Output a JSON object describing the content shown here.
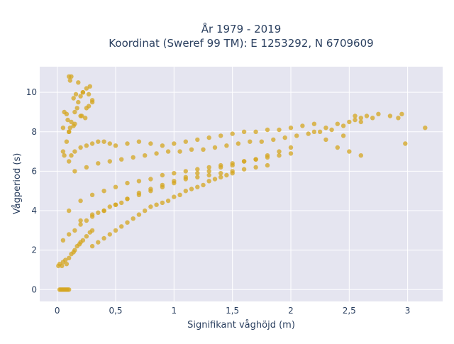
{
  "chart_data": {
    "type": "scatter",
    "title_line1": "År 1979 - 2019",
    "title_line2": "Koordinat (Sweref 99 TM): E 1253292, N 6709609",
    "xlabel": "Signifikant våghöjd (m)",
    "ylabel": "Vågperiod (s)",
    "xlim": [
      -0.15,
      3.3
    ],
    "ylim": [
      -0.6,
      11.3
    ],
    "x_ticks": [
      0,
      0.5,
      1,
      1.5,
      2,
      2.5,
      3
    ],
    "x_tick_labels": [
      "0",
      "0,5",
      "1",
      "1,5",
      "2",
      "2,5",
      "3"
    ],
    "y_ticks": [
      0,
      2,
      4,
      6,
      8,
      10
    ],
    "y_tick_labels": [
      "0",
      "2",
      "4",
      "6",
      "8",
      "10"
    ],
    "grid": true,
    "legend": "none",
    "colors": {
      "marker": "#d4a520",
      "plot_background": "#e5e5f0",
      "grid": "#ffffff",
      "text": "#2a3f5f"
    },
    "series": [
      {
        "x": [
          0.02,
          0.03,
          0.04,
          0.05,
          0.06,
          0.07,
          0.08,
          0.09,
          0.1,
          0.01,
          0.02,
          0.04,
          0.05,
          0.07,
          0.08,
          0.1,
          0.12,
          0.14,
          0.15,
          0.17,
          0.19,
          0.2,
          0.22,
          0.25,
          0.28,
          0.3,
          0.05,
          0.1,
          0.15,
          0.2,
          0.25,
          0.3,
          0.35,
          0.4,
          0.45,
          0.5,
          0.55,
          0.6,
          0.7,
          0.8,
          0.9,
          1.0,
          1.1,
          1.2,
          1.3,
          1.4,
          1.5,
          1.6,
          1.7,
          1.8,
          0.1,
          0.2,
          0.3,
          0.4,
          0.5,
          0.6,
          0.7,
          0.8,
          0.9,
          1.0,
          1.1,
          1.2,
          1.3,
          1.4,
          1.5,
          1.6,
          1.7,
          1.8,
          1.9,
          2.0,
          0.15,
          0.25,
          0.35,
          0.45,
          0.55,
          0.65,
          0.75,
          0.85,
          0.95,
          1.05,
          1.15,
          1.25,
          1.35,
          1.45,
          1.55,
          1.65,
          1.75,
          1.85,
          1.95,
          2.05,
          2.15,
          2.25,
          0.05,
          0.08,
          0.1,
          0.12,
          0.15,
          0.18,
          0.2,
          0.22,
          0.25,
          0.28,
          0.3,
          0.06,
          0.09,
          0.11,
          0.14,
          0.17,
          0.21,
          0.24,
          0.27,
          0.1,
          0.12,
          0.15,
          0.2,
          0.25,
          0.3,
          0.35,
          0.4,
          0.45,
          0.5,
          0.6,
          0.7,
          0.8,
          0.9,
          1.0,
          1.1,
          1.2,
          1.3,
          1.4,
          1.5,
          1.6,
          1.7,
          1.8,
          1.9,
          2.0,
          2.1,
          2.2,
          2.2,
          2.3,
          2.35,
          2.4,
          2.45,
          2.5,
          2.55,
          2.6,
          2.65,
          2.7,
          2.75,
          2.4,
          2.5,
          2.6,
          2.3,
          2.45,
          2.85,
          2.92,
          2.95,
          3.15,
          2.98,
          2.55,
          2.6,
          0.1,
          0.15,
          0.2,
          0.25,
          0.3,
          0.12,
          0.18,
          0.22,
          0.27,
          0.08,
          0.1,
          0.14,
          0.06,
          0.05,
          0.11,
          0.16,
          0.3,
          0.35,
          0.4,
          0.45,
          0.5,
          0.55,
          0.6,
          0.65,
          0.7,
          0.75,
          0.8,
          0.85,
          0.9,
          0.95,
          1.0,
          1.05,
          1.1,
          1.15,
          1.2,
          1.25,
          1.3,
          1.35,
          1.4,
          1.45,
          1.5,
          0.2,
          0.3,
          0.4,
          0.5,
          0.6,
          0.7,
          0.8,
          0.9,
          1.0,
          1.1,
          1.2,
          1.3,
          1.4,
          1.5,
          1.6,
          1.7,
          1.8,
          1.9,
          2.0
        ],
        "y": [
          0,
          0,
          0,
          0,
          0,
          0,
          0,
          0,
          0,
          1.2,
          1.3,
          1.2,
          1.4,
          1.5,
          1.3,
          1.6,
          1.8,
          1.9,
          2.0,
          2.2,
          2.3,
          2.4,
          2.5,
          2.7,
          2.9,
          3.0,
          2.5,
          2.8,
          3.0,
          3.3,
          3.5,
          3.7,
          3.9,
          4.0,
          4.2,
          4.3,
          4.4,
          4.6,
          4.8,
          5.0,
          5.2,
          5.4,
          5.6,
          5.7,
          5.8,
          5.9,
          6.0,
          6.1,
          6.2,
          6.3,
          4.0,
          4.5,
          4.8,
          5.0,
          5.2,
          5.4,
          5.5,
          5.6,
          5.8,
          5.9,
          6.0,
          6.1,
          6.2,
          6.3,
          6.4,
          6.5,
          6.6,
          6.7,
          6.8,
          6.9,
          6.0,
          6.2,
          6.4,
          6.5,
          6.6,
          6.7,
          6.8,
          6.9,
          7.0,
          7.0,
          7.1,
          7.1,
          7.2,
          7.3,
          7.4,
          7.5,
          7.5,
          7.6,
          7.7,
          7.8,
          7.9,
          8.0,
          7.0,
          7.5,
          8.0,
          8.5,
          9.0,
          9.5,
          9.8,
          10.0,
          10.2,
          10.3,
          9.6,
          6.8,
          8.6,
          8.2,
          8.3,
          9.2,
          8.8,
          8.7,
          9.9,
          6.5,
          6.8,
          7.0,
          7.2,
          7.3,
          7.4,
          7.5,
          7.5,
          7.4,
          7.3,
          7.4,
          7.5,
          7.4,
          7.3,
          7.4,
          7.5,
          7.6,
          7.7,
          7.8,
          7.9,
          8.0,
          8.0,
          8.1,
          8.1,
          8.2,
          8.3,
          8.4,
          8.0,
          8.2,
          8.1,
          8.4,
          8.3,
          8.5,
          8.6,
          8.5,
          8.8,
          8.7,
          8.9,
          7.2,
          7.0,
          6.8,
          7.6,
          7.8,
          8.8,
          8.7,
          8.9,
          8.2,
          7.4,
          8.8,
          8.7,
          8.0,
          8.4,
          8.8,
          9.2,
          9.5,
          10.8,
          10.5,
          10.0,
          9.3,
          8.9,
          10.8,
          9.7,
          9.0,
          8.2,
          10.6,
          9.9,
          2.2,
          2.4,
          2.6,
          2.8,
          3.0,
          3.2,
          3.4,
          3.6,
          3.8,
          4.0,
          4.2,
          4.3,
          4.4,
          4.5,
          4.7,
          4.8,
          5.0,
          5.1,
          5.2,
          5.3,
          5.5,
          5.6,
          5.7,
          5.8,
          5.9,
          3.5,
          3.8,
          4.0,
          4.3,
          4.6,
          4.9,
          5.1,
          5.3,
          5.5,
          5.7,
          5.9,
          6.0,
          6.2,
          6.3,
          6.5,
          6.6,
          6.8,
          7.0,
          7.2
        ]
      }
    ]
  }
}
